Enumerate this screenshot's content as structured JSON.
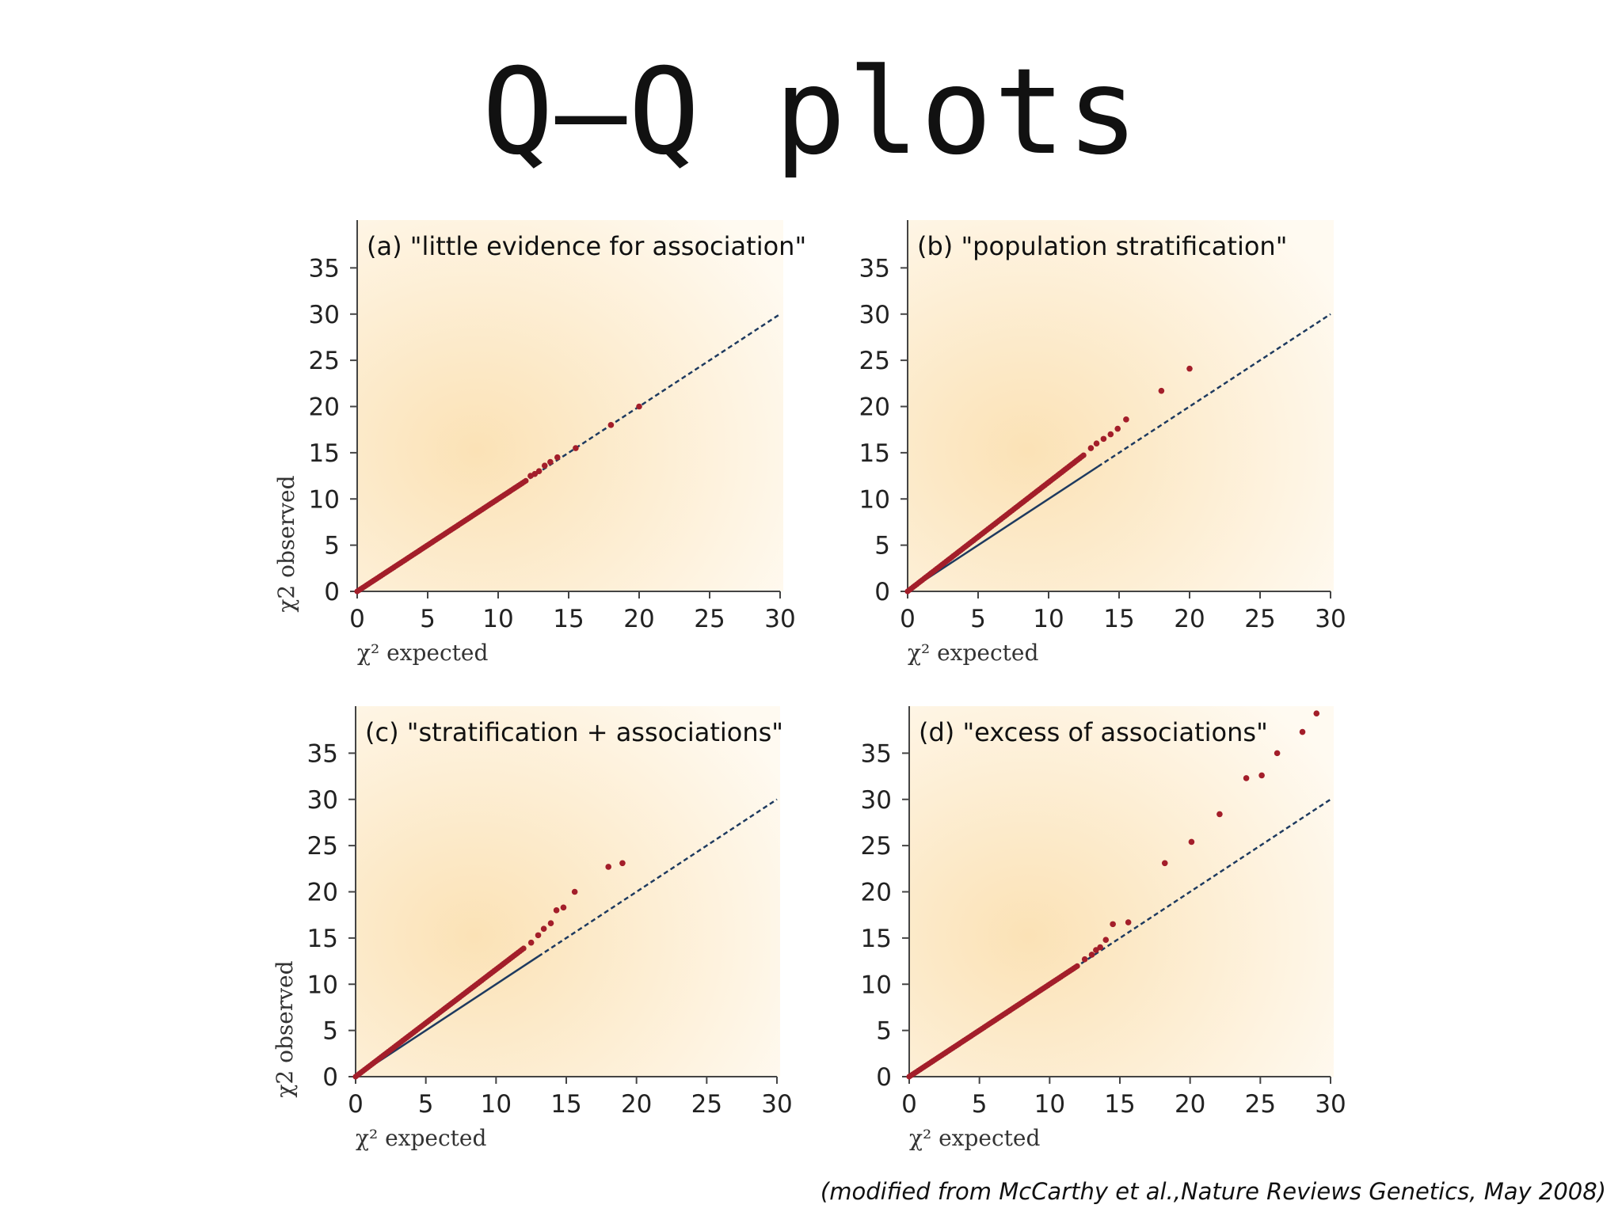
{
  "title": "Q–Q plots",
  "citation": "(modified from McCarthy et al.,Nature Reviews Genetics, May 2008)",
  "colors": {
    "points": "#a31e2a",
    "reference_line": "#1e3a5f",
    "background_center": "#fbe2b6",
    "background_edge": "#fffaf1"
  },
  "chart_data": [
    {
      "type": "scatter",
      "panel": "(a)",
      "title": "\"little evidence for association\"",
      "xlabel": "χ² expected",
      "ylabel": "χ2 observed",
      "xlim": [
        0,
        30
      ],
      "ylim": [
        0,
        40
      ],
      "xticks": [
        0,
        5,
        10,
        15,
        20,
        25,
        30
      ],
      "yticks": [
        0,
        5,
        10,
        15,
        20,
        25,
        30,
        35
      ],
      "reference_line": {
        "slope": 1,
        "solid_to": 0,
        "dashed_to": 30
      },
      "trend": {
        "slope": 1.0,
        "dense_to": 12
      },
      "points": [
        [
          12.3,
          12.5
        ],
        [
          12.6,
          12.7
        ],
        [
          12.9,
          13.0
        ],
        [
          13.3,
          13.6
        ],
        [
          13.7,
          14.0
        ],
        [
          14.2,
          14.5
        ],
        [
          15.5,
          15.5
        ],
        [
          18.0,
          18.0
        ],
        [
          20.0,
          20.0
        ]
      ]
    },
    {
      "type": "scatter",
      "panel": "(b)",
      "title": "\"population stratification\"",
      "xlabel": "χ² expected",
      "ylabel": "",
      "xlim": [
        0,
        30
      ],
      "ylim": [
        0,
        40
      ],
      "xticks": [
        0,
        5,
        10,
        15,
        20,
        25,
        30
      ],
      "yticks": [
        0,
        5,
        10,
        15,
        20,
        25,
        30,
        35
      ],
      "reference_line": {
        "slope": 1,
        "solid_to": 13.5,
        "dashed_to": 30
      },
      "trend": {
        "slope": 1.18,
        "dense_to": 12.5
      },
      "points": [
        [
          13.0,
          15.5
        ],
        [
          13.4,
          16.0
        ],
        [
          13.9,
          16.5
        ],
        [
          14.4,
          17.0
        ],
        [
          14.9,
          17.6
        ],
        [
          15.5,
          18.6
        ],
        [
          18.0,
          21.7
        ],
        [
          20.0,
          24.1
        ]
      ]
    },
    {
      "type": "scatter",
      "panel": "(c)",
      "title": "\"stratification + associations\"",
      "xlabel": "χ² expected",
      "ylabel": "χ2 observed",
      "xlim": [
        0,
        30
      ],
      "ylim": [
        0,
        40
      ],
      "xticks": [
        0,
        5,
        10,
        15,
        20,
        25,
        30
      ],
      "yticks": [
        0,
        5,
        10,
        15,
        20,
        25,
        30,
        35
      ],
      "reference_line": {
        "slope": 1,
        "solid_to": 13,
        "dashed_to": 30
      },
      "trend": {
        "slope": 1.16,
        "dense_to": 12
      },
      "points": [
        [
          12.5,
          14.5
        ],
        [
          13.0,
          15.3
        ],
        [
          13.4,
          16.0
        ],
        [
          13.9,
          16.6
        ],
        [
          14.3,
          18.0
        ],
        [
          14.8,
          18.3
        ],
        [
          15.6,
          20.0
        ],
        [
          18.0,
          22.7
        ],
        [
          19.0,
          23.1
        ]
      ]
    },
    {
      "type": "scatter",
      "panel": "(d)",
      "title": "\"excess of associations\"",
      "xlabel": "χ² expected",
      "ylabel": "",
      "xlim": [
        0,
        30
      ],
      "ylim": [
        0,
        40
      ],
      "xticks": [
        0,
        5,
        10,
        15,
        20,
        25,
        30
      ],
      "yticks": [
        0,
        5,
        10,
        15,
        20,
        25,
        30,
        35
      ],
      "reference_line": {
        "slope": 1,
        "solid_to": 0,
        "dashed_to": 30
      },
      "trend": {
        "slope": 1.0,
        "dense_to": 12
      },
      "points": [
        [
          12.5,
          12.7
        ],
        [
          13.0,
          13.2
        ],
        [
          13.3,
          13.7
        ],
        [
          13.6,
          14.0
        ],
        [
          14.0,
          14.8
        ],
        [
          14.5,
          16.5
        ],
        [
          15.6,
          16.7
        ],
        [
          18.2,
          23.1
        ],
        [
          20.1,
          25.4
        ],
        [
          22.1,
          28.4
        ],
        [
          24.0,
          32.3
        ],
        [
          25.1,
          32.6
        ],
        [
          26.2,
          35.0
        ],
        [
          28.0,
          37.3
        ],
        [
          29.0,
          39.3
        ]
      ]
    }
  ]
}
